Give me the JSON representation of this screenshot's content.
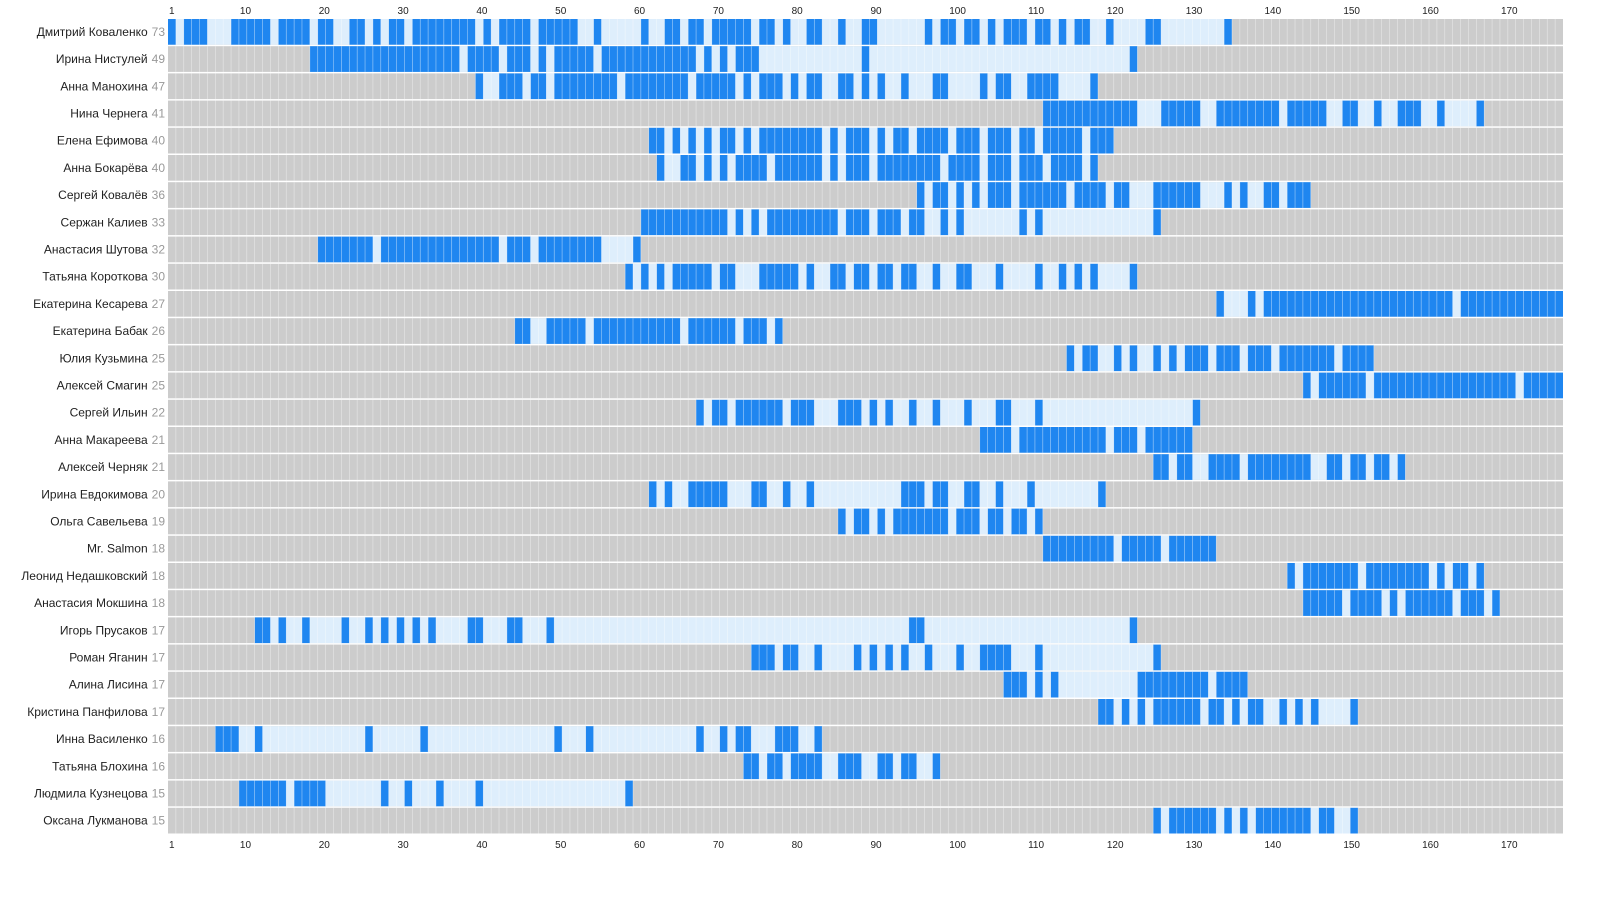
{
  "colors": {
    "absent": "#cccccc",
    "between": "#deeefc",
    "present": "#1f86f0",
    "count_text": "#999999",
    "name_text": "#222222"
  },
  "chart_data": {
    "type": "heatmap",
    "x_min": 1,
    "x_max": 177,
    "x_ticks": [
      1,
      10,
      20,
      30,
      40,
      50,
      60,
      70,
      80,
      90,
      100,
      110,
      120,
      130,
      140,
      150,
      160,
      170
    ],
    "rows": [
      {
        "name": "Дмитрий Коваленко",
        "count": "73",
        "present": [
          1,
          3,
          4,
          5,
          9,
          10,
          11,
          12,
          13,
          15,
          16,
          17,
          18,
          20,
          21,
          24,
          25,
          27,
          29,
          30,
          32,
          33,
          34,
          35,
          36,
          37,
          38,
          39,
          41,
          43,
          44,
          45,
          46,
          48,
          49,
          50,
          51,
          52,
          55,
          61,
          64,
          65,
          67,
          68,
          70,
          71,
          72,
          73,
          74,
          76,
          77,
          79,
          82,
          83,
          86,
          89,
          90,
          97,
          99,
          100,
          102,
          103,
          105,
          107,
          108,
          109,
          111,
          112,
          114,
          116,
          117,
          120,
          125,
          126,
          135
        ]
      },
      {
        "name": "Ирина Нистулей",
        "count": "49",
        "present": [
          19,
          20,
          21,
          22,
          23,
          24,
          25,
          26,
          27,
          28,
          29,
          30,
          31,
          32,
          33,
          34,
          35,
          36,
          37,
          39,
          40,
          41,
          42,
          44,
          45,
          46,
          48,
          50,
          51,
          52,
          53,
          54,
          56,
          57,
          58,
          59,
          60,
          61,
          62,
          63,
          64,
          65,
          66,
          67,
          69,
          71,
          73,
          74,
          75,
          89,
          123
        ]
      },
      {
        "name": "Анна Манохина",
        "count": "47",
        "present": [
          40,
          43,
          44,
          45,
          47,
          48,
          50,
          51,
          52,
          53,
          54,
          55,
          56,
          57,
          59,
          60,
          61,
          62,
          63,
          64,
          65,
          66,
          68,
          69,
          70,
          71,
          72,
          74,
          76,
          77,
          78,
          80,
          82,
          83,
          86,
          87,
          89,
          91,
          94,
          98,
          99,
          104,
          106,
          107,
          110,
          111,
          112,
          113,
          118
        ]
      },
      {
        "name": "Нина Чернега",
        "count": "41",
        "present": [
          112,
          113,
          114,
          115,
          116,
          117,
          118,
          119,
          120,
          121,
          122,
          123,
          127,
          128,
          129,
          130,
          131,
          134,
          135,
          136,
          137,
          138,
          139,
          140,
          141,
          143,
          144,
          145,
          146,
          147,
          150,
          151,
          154,
          157,
          158,
          159,
          162,
          167
        ]
      },
      {
        "name": "Елена Ефимова",
        "count": "40",
        "present": [
          62,
          63,
          65,
          67,
          69,
          71,
          72,
          74,
          76,
          77,
          78,
          79,
          80,
          81,
          82,
          83,
          85,
          87,
          88,
          89,
          91,
          93,
          94,
          96,
          97,
          98,
          99,
          101,
          102,
          103,
          105,
          106,
          107,
          109,
          110,
          112,
          113,
          114,
          115,
          116,
          118,
          119,
          120
        ]
      },
      {
        "name": "Анна Бокарёва",
        "count": "40",
        "present": [
          63,
          66,
          67,
          69,
          71,
          73,
          74,
          75,
          76,
          78,
          79,
          80,
          81,
          82,
          83,
          85,
          87,
          88,
          89,
          91,
          92,
          93,
          94,
          95,
          96,
          97,
          98,
          100,
          101,
          102,
          103,
          105,
          106,
          107,
          109,
          110,
          111,
          113,
          114,
          115,
          116,
          118
        ]
      },
      {
        "name": "Сергей Ковалёв",
        "count": "36",
        "present": [
          96,
          98,
          99,
          101,
          103,
          105,
          106,
          107,
          109,
          110,
          111,
          112,
          113,
          114,
          116,
          117,
          118,
          119,
          121,
          122,
          126,
          127,
          128,
          129,
          130,
          131,
          135,
          137,
          140,
          141,
          143,
          144,
          145
        ]
      },
      {
        "name": "Сержан Калиев",
        "count": "33",
        "present": [
          61,
          62,
          63,
          64,
          65,
          66,
          67,
          68,
          69,
          70,
          71,
          73,
          75,
          77,
          78,
          79,
          80,
          81,
          82,
          83,
          84,
          85,
          87,
          88,
          89,
          91,
          92,
          93,
          95,
          96,
          99,
          101,
          109,
          111,
          126
        ]
      },
      {
        "name": "Анастасия Шутова",
        "count": "32",
        "present": [
          20,
          21,
          22,
          23,
          24,
          25,
          26,
          28,
          29,
          30,
          31,
          32,
          33,
          34,
          35,
          36,
          37,
          38,
          39,
          40,
          41,
          42,
          44,
          45,
          46,
          48,
          49,
          50,
          51,
          52,
          53,
          54,
          55,
          60
        ]
      },
      {
        "name": "Татьяна Короткова",
        "count": "30",
        "present": [
          59,
          61,
          63,
          65,
          66,
          67,
          68,
          69,
          71,
          72,
          76,
          77,
          78,
          79,
          80,
          82,
          85,
          86,
          88,
          89,
          91,
          92,
          94,
          95,
          98,
          101,
          102,
          106,
          111,
          114,
          116,
          118,
          123
        ]
      },
      {
        "name": "Екатерина Кесарева",
        "count": "27",
        "present": [
          134,
          138,
          140,
          141,
          142,
          143,
          144,
          145,
          146,
          147,
          148,
          149,
          150,
          151,
          152,
          153,
          154,
          155,
          156,
          157,
          158,
          159,
          160,
          161,
          162,
          163,
          165,
          166,
          167,
          168,
          169,
          170,
          171,
          172,
          173,
          174,
          175,
          176,
          177
        ]
      },
      {
        "name": "Екатерина Бабак",
        "count": "26",
        "present": [
          45,
          46,
          49,
          50,
          51,
          52,
          53,
          55,
          56,
          57,
          58,
          59,
          60,
          61,
          62,
          63,
          64,
          65,
          67,
          68,
          69,
          70,
          71,
          72,
          74,
          75,
          76,
          78
        ]
      },
      {
        "name": "Юлия Кузьмина",
        "count": "25",
        "present": [
          115,
          117,
          118,
          121,
          123,
          126,
          128,
          130,
          131,
          132,
          134,
          135,
          136,
          138,
          139,
          140,
          142,
          143,
          144,
          145,
          146,
          147,
          148,
          150,
          151,
          152,
          153
        ]
      },
      {
        "name": "Алексей Смагин",
        "count": "25",
        "present": [
          145,
          147,
          148,
          149,
          150,
          151,
          152,
          154,
          155,
          156,
          157,
          158,
          159,
          160,
          161,
          162,
          163,
          164,
          165,
          166,
          167,
          168,
          169,
          170,
          171,
          173,
          174,
          175,
          176,
          177
        ]
      },
      {
        "name": "Сергей Ильин",
        "count": "22",
        "present": [
          68,
          70,
          71,
          73,
          74,
          75,
          76,
          77,
          78,
          80,
          81,
          82,
          86,
          87,
          88,
          90,
          92,
          95,
          98,
          102,
          106,
          107,
          111,
          131
        ]
      },
      {
        "name": "Анна Макареева",
        "count": "21",
        "present": [
          104,
          105,
          106,
          107,
          109,
          110,
          111,
          112,
          113,
          114,
          115,
          116,
          117,
          118,
          119,
          121,
          122,
          123,
          125,
          126,
          127,
          128,
          129,
          130
        ]
      },
      {
        "name": "Алексей Черняк",
        "count": "21",
        "present": [
          126,
          127,
          129,
          130,
          133,
          134,
          135,
          136,
          138,
          139,
          140,
          141,
          142,
          143,
          144,
          145,
          148,
          149,
          151,
          152,
          154,
          155,
          157
        ]
      },
      {
        "name": "Ирина Евдокимова",
        "count": "20",
        "present": [
          62,
          64,
          67,
          68,
          69,
          70,
          71,
          75,
          76,
          79,
          82,
          94,
          95,
          96,
          98,
          99,
          102,
          103,
          106,
          110,
          119
        ]
      },
      {
        "name": "Ольга Савельева",
        "count": "19",
        "present": [
          86,
          88,
          89,
          91,
          93,
          94,
          95,
          96,
          97,
          98,
          99,
          101,
          102,
          103,
          105,
          106,
          108,
          109,
          111
        ]
      },
      {
        "name": "Mr. Salmon",
        "count": "18",
        "present": [
          112,
          113,
          114,
          115,
          116,
          117,
          118,
          119,
          120,
          122,
          123,
          124,
          125,
          126,
          128,
          129,
          130,
          131,
          132,
          133
        ]
      },
      {
        "name": "Леонид Недашковский",
        "count": "18",
        "present": [
          143,
          145,
          146,
          147,
          148,
          149,
          150,
          151,
          153,
          154,
          155,
          156,
          157,
          158,
          159,
          160,
          162,
          164,
          165,
          167
        ]
      },
      {
        "name": "Анастасия Мокшина",
        "count": "18",
        "present": [
          145,
          146,
          147,
          148,
          149,
          151,
          152,
          153,
          154,
          156,
          158,
          159,
          160,
          161,
          162,
          163,
          165,
          166,
          167,
          169
        ]
      },
      {
        "name": "Игорь Прусаков",
        "count": "17",
        "present": [
          12,
          13,
          15,
          18,
          23,
          26,
          28,
          30,
          32,
          34,
          39,
          40,
          44,
          45,
          49,
          95,
          96,
          123
        ]
      },
      {
        "name": "Роман Яганин",
        "count": "17",
        "present": [
          75,
          76,
          77,
          79,
          80,
          83,
          88,
          90,
          92,
          94,
          97,
          101,
          104,
          105,
          106,
          107,
          111,
          126
        ]
      },
      {
        "name": "Алина Лисина",
        "count": "17",
        "present": [
          107,
          108,
          109,
          111,
          113,
          124,
          125,
          126,
          127,
          128,
          129,
          130,
          131,
          132,
          134,
          135,
          136,
          137
        ]
      },
      {
        "name": "Кристина Панфилова",
        "count": "17",
        "present": [
          119,
          120,
          122,
          124,
          126,
          127,
          128,
          129,
          130,
          131,
          133,
          134,
          136,
          138,
          139,
          142,
          144,
          146,
          151
        ]
      },
      {
        "name": "Инна Василенко",
        "count": "16",
        "present": [
          7,
          8,
          9,
          12,
          26,
          33,
          50,
          54,
          68,
          71,
          73,
          74,
          78,
          79,
          80,
          83
        ]
      },
      {
        "name": "Татьяна Блохина",
        "count": "16",
        "present": [
          74,
          75,
          77,
          78,
          80,
          81,
          82,
          83,
          86,
          87,
          88,
          91,
          92,
          94,
          95,
          98
        ]
      },
      {
        "name": "Людмила Кузнецова",
        "count": "15",
        "present": [
          10,
          11,
          12,
          13,
          14,
          15,
          17,
          18,
          19,
          20,
          28,
          31,
          35,
          40,
          59
        ]
      },
      {
        "name": "Оксана Лукманова",
        "count": "15",
        "present": [
          126,
          128,
          129,
          130,
          131,
          132,
          133,
          135,
          137,
          139,
          140,
          141,
          142,
          143,
          144,
          145,
          147,
          148,
          151
        ]
      }
    ]
  }
}
